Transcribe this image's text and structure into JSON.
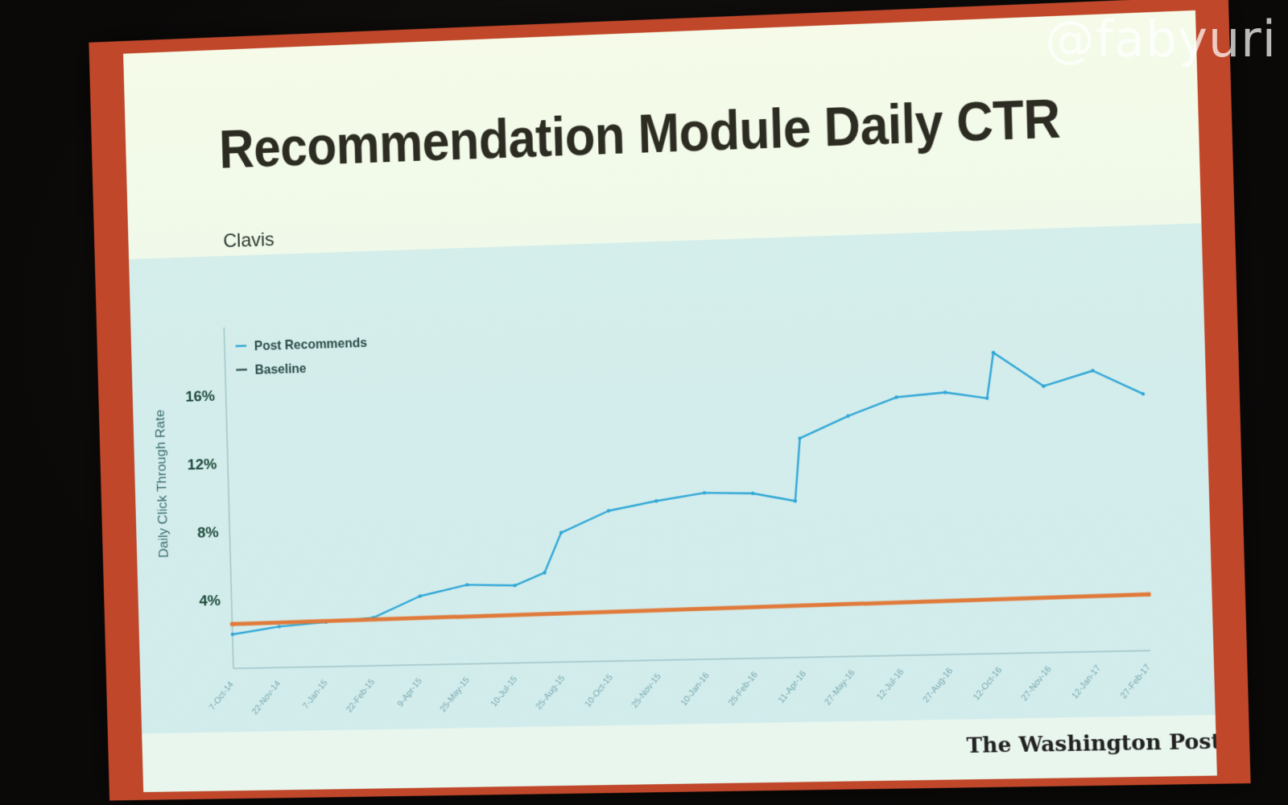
{
  "slide": {
    "title": "Recommendation Module Daily CTR",
    "subtitle": "Clavis",
    "brand": "The Washington Post"
  },
  "watermark": "@fabyuri",
  "colors": {
    "frame": "#c0472a",
    "post_recommends": "#2ea6d6",
    "baseline": "#e07a3a",
    "ytick": "#1e4a3a"
  },
  "chart_data": {
    "type": "line",
    "ylabel": "Daily Click Through Rate",
    "xlabel": "",
    "yticks": [
      "4%",
      "8%",
      "12%",
      "16%"
    ],
    "ytick_values": [
      4,
      8,
      12,
      16
    ],
    "ylim": [
      0,
      20
    ],
    "xlim": [
      "2014-10-07",
      "2017-02-27"
    ],
    "xticks": [
      "7-Oct-14",
      "22-Nov-14",
      "7-Jan-15",
      "22-Feb-15",
      "9-Apr-15",
      "25-May-15",
      "10-Jul-15",
      "25-Aug-15",
      "10-Oct-15",
      "25-Nov-15",
      "10-Jan-16",
      "25-Feb-16",
      "11-Apr-16",
      "27-May-16",
      "12-Jul-16",
      "27-Aug-16",
      "12-Oct-16",
      "27-Nov-16",
      "12-Jan-17",
      "27-Feb-17"
    ],
    "legend_position": "top-left",
    "grid": false,
    "series": [
      {
        "name": "Post Recommends",
        "x": [
          "2014-10-07",
          "2014-11-22",
          "2015-01-07",
          "2015-02-22",
          "2015-04-09",
          "2015-05-25",
          "2015-07-10",
          "2015-08-08",
          "2015-08-25",
          "2015-10-10",
          "2015-11-25",
          "2016-01-10",
          "2016-02-25",
          "2016-04-05",
          "2016-04-11",
          "2016-05-27",
          "2016-07-12",
          "2016-08-27",
          "2016-10-05",
          "2016-10-12",
          "2016-11-27",
          "2017-01-12",
          "2017-02-27"
        ],
        "values": [
          2.0,
          2.4,
          2.6,
          2.8,
          4.0,
          4.6,
          4.5,
          5.2,
          7.5,
          8.7,
          9.2,
          9.6,
          9.5,
          9.0,
          12.6,
          13.8,
          14.8,
          15.0,
          14.6,
          17.2,
          15.2,
          16.0,
          14.6
        ]
      },
      {
        "name": "Baseline",
        "x": [
          "2014-10-07",
          "2017-02-27"
        ],
        "values": [
          2.6,
          3.2
        ]
      }
    ]
  }
}
